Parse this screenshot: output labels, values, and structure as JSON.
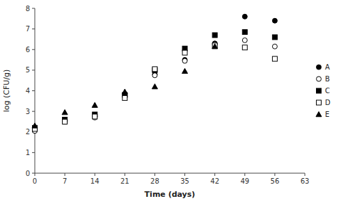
{
  "chart_data": {
    "type": "scatter",
    "xlabel": "Time (days)",
    "ylabel": "log (CFU/g)",
    "xlim": [
      0,
      63
    ],
    "ylim": [
      0,
      8
    ],
    "xticks": [
      0,
      7,
      14,
      21,
      28,
      35,
      42,
      49,
      56,
      63
    ],
    "yticks": [
      0,
      1,
      2,
      3,
      4,
      5,
      6,
      7,
      8
    ],
    "grid": false,
    "legend": "right",
    "series": [
      {
        "name": "A",
        "color": "black",
        "marker": "circle",
        "x": [
          0,
          7,
          14,
          21,
          28,
          35,
          42,
          49,
          56
        ],
        "values": [
          2.1,
          2.55,
          2.75,
          3.75,
          4.8,
          5.5,
          6.3,
          7.6,
          7.4
        ]
      },
      {
        "name": "B",
        "color": "black",
        "marker": "circle-open",
        "x": [
          0,
          7,
          14,
          21,
          28,
          35,
          42,
          49,
          56
        ],
        "values": [
          2.05,
          2.5,
          2.7,
          3.7,
          4.75,
          5.45,
          6.25,
          6.45,
          6.15
        ]
      },
      {
        "name": "C",
        "color": "black",
        "marker": "square",
        "x": [
          0,
          7,
          14,
          21,
          28,
          35,
          42,
          49,
          56
        ],
        "values": [
          2.2,
          2.6,
          2.85,
          3.8,
          5.0,
          6.05,
          6.7,
          6.85,
          6.6
        ]
      },
      {
        "name": "D",
        "color": "black",
        "marker": "square-open",
        "x": [
          0,
          7,
          14,
          21,
          28,
          35,
          42,
          49,
          56
        ],
        "values": [
          2.15,
          2.5,
          2.75,
          3.65,
          5.05,
          5.85,
          6.2,
          6.1,
          5.55
        ]
      },
      {
        "name": "E",
        "color": "black",
        "marker": "triangle",
        "x": [
          0,
          7,
          14,
          21,
          28,
          35,
          42
        ],
        "values": [
          2.3,
          2.95,
          3.3,
          3.95,
          4.2,
          4.95,
          6.15
        ]
      }
    ]
  }
}
